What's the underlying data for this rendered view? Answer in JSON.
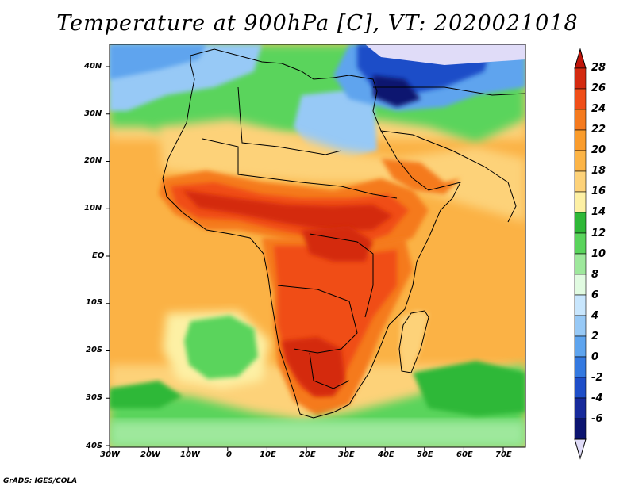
{
  "title": "Temperature at 900hPa [C], VT: 2020021018",
  "footer": "GrADS: IGES/COLA",
  "lat_labels": [
    "40N",
    "30N",
    "20N",
    "10N",
    "EQ",
    "10S",
    "20S",
    "30S",
    "40S"
  ],
  "lon_labels": [
    "30W",
    "20W",
    "10W",
    "0",
    "10E",
    "20E",
    "30E",
    "40E",
    "50E",
    "60E",
    "70E"
  ],
  "colorbar": {
    "labels": [
      "28",
      "26",
      "24",
      "22",
      "20",
      "18",
      "16",
      "14",
      "12",
      "10",
      "8",
      "6",
      "4",
      "2",
      "0",
      "-2",
      "-4",
      "-6"
    ],
    "colors": [
      "#d42a10",
      "#f04e18",
      "#f57a1e",
      "#fa9c2c",
      "#fcb446",
      "#fdd279",
      "#fdf0a4",
      "#2fb837",
      "#5ad45c",
      "#9ee89c",
      "#e1fbe1",
      "#c8e6fd",
      "#97c9f6",
      "#5ea4ee",
      "#3479e0",
      "#1e4ec8",
      "#172a9b",
      "#0c1470"
    ],
    "over_color": "#c0150a",
    "under_color": "#e0dcf8"
  }
}
